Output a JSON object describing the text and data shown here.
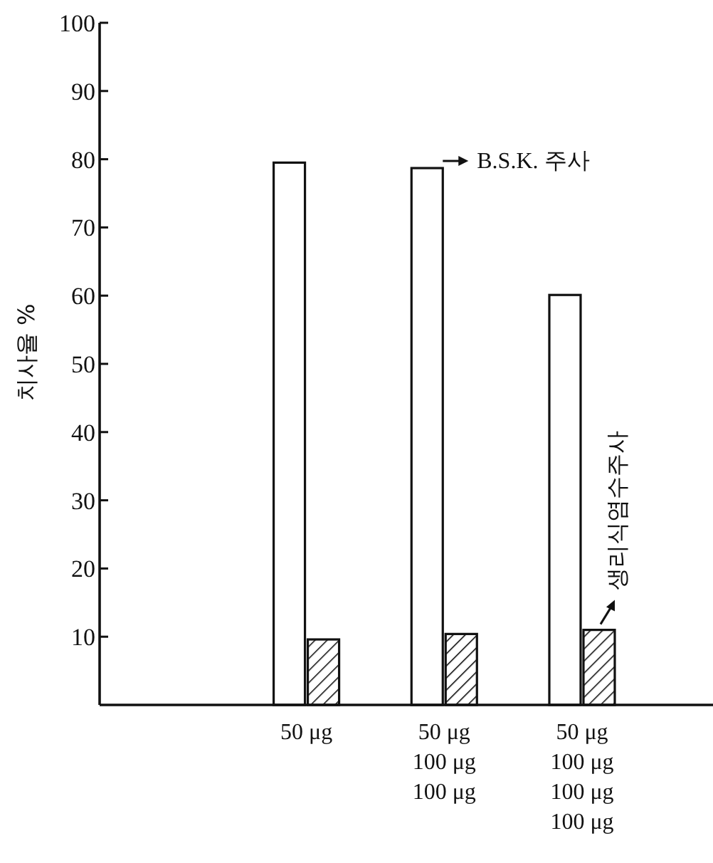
{
  "chart_data": {
    "type": "bar",
    "ylabel": "치사율 %",
    "categories": [
      "50 μg",
      "50 μg\n100 μg\n100 μg",
      "50 μg\n100 μg\n100 μg\n100 μg"
    ],
    "series": [
      {
        "color": "#111111",
        "values": [
          79.5,
          78.7,
          60.1
        ]
      },
      {
        "color": "#111111",
        "values": [
          9.6,
          10.4,
          11
        ]
      }
    ],
    "ylim": [
      0,
      100
    ],
    "yticks": [
      10,
      20,
      30,
      40,
      50,
      60,
      70,
      80,
      90,
      100
    ],
    "annotations": [
      {
        "text": "B.S.K. 주사",
        "x": "50 μg\n100 μg\n100 μg",
        "y": 78.7
      },
      {
        "text": "생리식염수주사",
        "x": "50 μg\n100 μg\n100 μg\n100 μg",
        "y": 11
      }
    ],
    "grid": false
  }
}
